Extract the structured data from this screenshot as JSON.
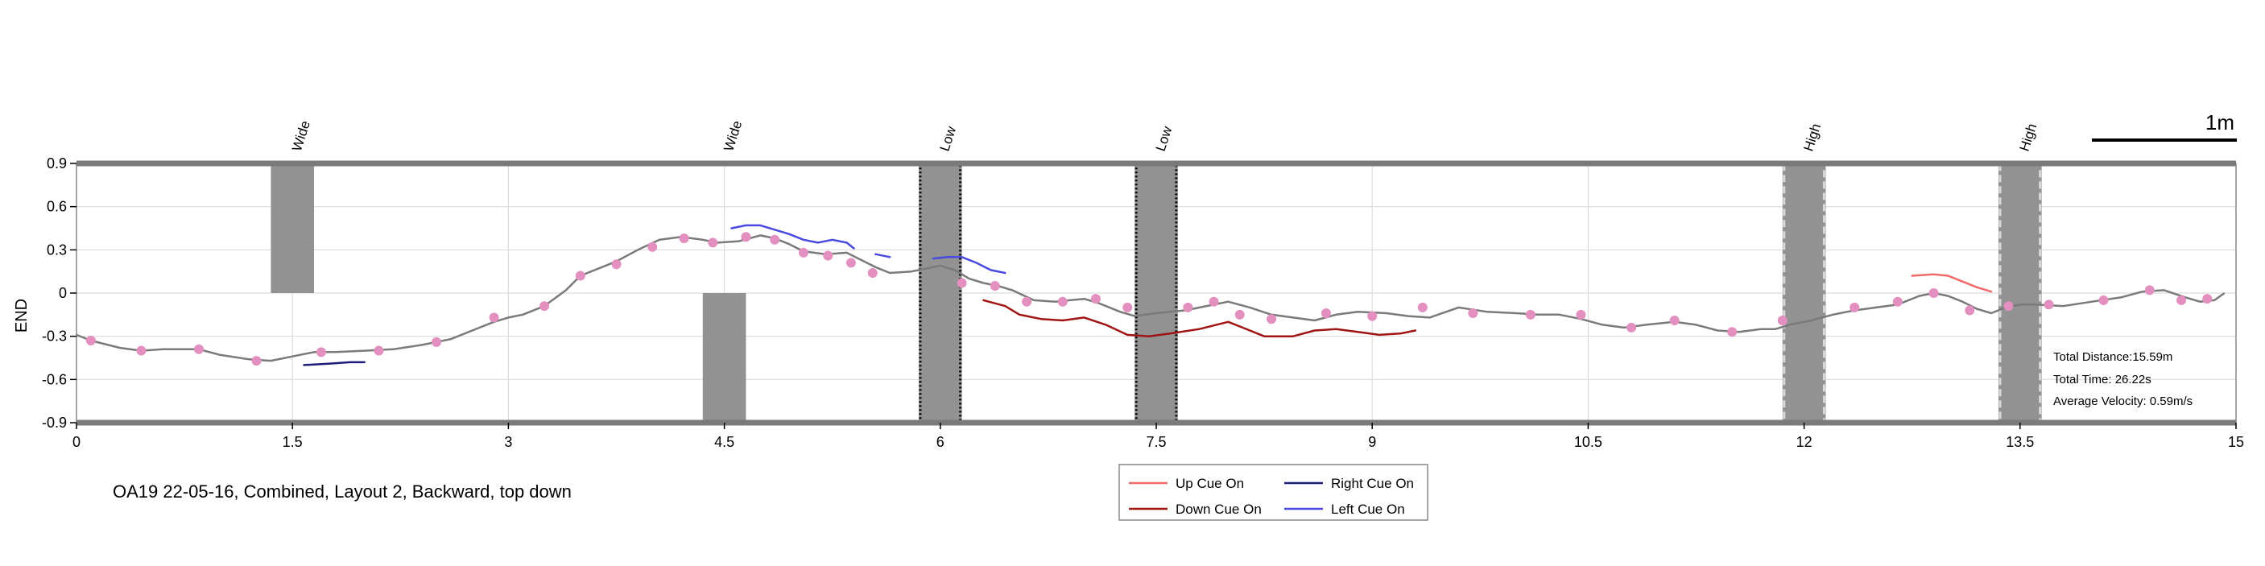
{
  "chart_data": {
    "type": "line",
    "ylabel": "END",
    "xlim": [
      0,
      15
    ],
    "ylim": [
      -0.9,
      0.9
    ],
    "xticks": [
      "0",
      "1.5",
      "3",
      "4.5",
      "6",
      "7.5",
      "9",
      "10.5",
      "12",
      "13.5",
      "15"
    ],
    "yticks": [
      "0.9",
      "0.6",
      "0.3",
      "0",
      "-0.3",
      "-0.6",
      "-0.9"
    ],
    "grid": true,
    "scale_bar_label": "1m",
    "obstacles": [
      {
        "label": "Wide",
        "x": [
          1.35,
          1.65
        ],
        "y": [
          0,
          0.9
        ],
        "style": "solid"
      },
      {
        "label": "Wide",
        "x": [
          4.35,
          4.65
        ],
        "y": [
          -0.9,
          0
        ],
        "style": "solid"
      },
      {
        "label": "Low",
        "x": [
          5.85,
          6.15
        ],
        "y": [
          -0.9,
          0.9
        ],
        "style": "dotted-black"
      },
      {
        "label": "Low",
        "x": [
          7.35,
          7.65
        ],
        "y": [
          -0.9,
          0.9
        ],
        "style": "dotted-black"
      },
      {
        "label": "High",
        "x": [
          11.85,
          12.15
        ],
        "y": [
          -0.9,
          0.9
        ],
        "style": "dashed-grey"
      },
      {
        "label": "High",
        "x": [
          13.35,
          13.65
        ],
        "y": [
          -0.9,
          0.9
        ],
        "style": "dashed-grey"
      }
    ],
    "path": {
      "x": [
        0,
        0.1,
        0.3,
        0.45,
        0.6,
        0.85,
        1.0,
        1.2,
        1.35,
        1.5,
        1.65,
        1.8,
        2.0,
        2.2,
        2.4,
        2.6,
        2.8,
        2.9,
        3.0,
        3.1,
        3.25,
        3.4,
        3.5,
        3.65,
        3.75,
        3.9,
        4.05,
        4.2,
        4.35,
        4.45,
        4.6,
        4.75,
        4.85,
        4.95,
        5.05,
        5.2,
        5.35,
        5.45,
        5.55,
        5.65,
        5.8,
        6.0,
        6.1,
        6.2,
        6.3,
        6.4,
        6.5,
        6.65,
        6.8,
        6.9,
        7.0,
        7.1,
        7.25,
        7.35,
        7.5,
        7.7,
        7.85,
        8.0,
        8.15,
        8.3,
        8.45,
        8.6,
        8.75,
        8.9,
        9.1,
        9.25,
        9.4,
        9.6,
        9.8,
        10.0,
        10.15,
        10.3,
        10.45,
        10.6,
        10.75,
        10.9,
        11.1,
        11.25,
        11.4,
        11.55,
        11.7,
        11.8,
        11.9,
        12.05,
        12.2,
        12.35,
        12.5,
        12.65,
        12.8,
        12.9,
        13.0,
        13.1,
        13.2,
        13.3,
        13.4,
        13.5,
        13.6,
        13.8,
        14.0,
        14.2,
        14.35,
        14.5,
        14.65,
        14.75,
        14.85,
        14.92
      ],
      "y": [
        -0.29,
        -0.33,
        -0.38,
        -0.4,
        -0.39,
        -0.39,
        -0.43,
        -0.46,
        -0.47,
        -0.44,
        -0.41,
        -0.41,
        -0.4,
        -0.39,
        -0.36,
        -0.32,
        -0.24,
        -0.2,
        -0.17,
        -0.15,
        -0.09,
        0.02,
        0.12,
        0.18,
        0.22,
        0.3,
        0.37,
        0.39,
        0.37,
        0.35,
        0.36,
        0.4,
        0.38,
        0.34,
        0.29,
        0.27,
        0.28,
        0.23,
        0.18,
        0.14,
        0.15,
        0.19,
        0.16,
        0.1,
        0.07,
        0.05,
        0.02,
        -0.05,
        -0.06,
        -0.05,
        -0.04,
        -0.07,
        -0.13,
        -0.16,
        -0.14,
        -0.12,
        -0.09,
        -0.06,
        -0.1,
        -0.15,
        -0.17,
        -0.19,
        -0.15,
        -0.13,
        -0.14,
        -0.16,
        -0.17,
        -0.1,
        -0.13,
        -0.14,
        -0.15,
        -0.15,
        -0.18,
        -0.22,
        -0.24,
        -0.22,
        -0.2,
        -0.22,
        -0.26,
        -0.27,
        -0.25,
        -0.25,
        -0.22,
        -0.19,
        -0.15,
        -0.12,
        -0.1,
        -0.08,
        -0.02,
        0.0,
        -0.02,
        -0.06,
        -0.11,
        -0.14,
        -0.1,
        -0.08,
        -0.08,
        -0.09,
        -0.06,
        -0.03,
        0.01,
        0.02,
        -0.03,
        -0.06,
        -0.05,
        0.0
      ]
    },
    "markers": {
      "x": [
        0.1,
        0.45,
        0.85,
        1.25,
        1.7,
        2.1,
        2.5,
        2.9,
        3.25,
        3.5,
        3.75,
        4.0,
        4.22,
        4.42,
        4.65,
        4.85,
        5.05,
        5.22,
        5.38,
        5.53,
        6.15,
        6.38,
        6.6,
        6.85,
        7.08,
        7.3,
        7.72,
        7.9,
        8.08,
        8.3,
        8.68,
        9.0,
        9.35,
        9.7,
        10.1,
        10.45,
        10.8,
        11.1,
        11.5,
        11.85,
        12.35,
        12.65,
        12.9,
        13.15,
        13.42,
        13.7,
        14.08,
        14.4,
        14.62,
        14.8
      ],
      "y": [
        -0.33,
        -0.4,
        -0.39,
        -0.47,
        -0.41,
        -0.4,
        -0.34,
        -0.17,
        -0.09,
        0.12,
        0.2,
        0.32,
        0.38,
        0.35,
        0.39,
        0.37,
        0.28,
        0.26,
        0.21,
        0.14,
        0.07,
        0.05,
        -0.06,
        -0.06,
        -0.04,
        -0.1,
        -0.1,
        -0.06,
        -0.15,
        -0.18,
        -0.14,
        -0.16,
        -0.1,
        -0.14,
        -0.15,
        -0.15,
        -0.24,
        -0.19,
        -0.27,
        -0.19,
        -0.1,
        -0.06,
        0.0,
        -0.12,
        -0.09,
        -0.08,
        -0.05,
        0.02,
        -0.05,
        -0.04
      ],
      "color": "#e38fbf"
    },
    "series": [
      {
        "name": "Up Cue On",
        "color": "#f06a6a",
        "segments": [
          [
            [
              12.75,
              0.12
            ],
            [
              12.9,
              0.13
            ],
            [
              13.0,
              0.12
            ],
            [
              13.1,
              0.08
            ],
            [
              13.2,
              0.04
            ],
            [
              13.3,
              0.01
            ]
          ]
        ]
      },
      {
        "name": "Down Cue On",
        "color": "#a01414",
        "segments": [
          [
            [
              6.3,
              -0.05
            ],
            [
              6.45,
              -0.09
            ],
            [
              6.55,
              -0.15
            ],
            [
              6.7,
              -0.18
            ],
            [
              6.85,
              -0.19
            ],
            [
              7.0,
              -0.17
            ],
            [
              7.15,
              -0.22
            ],
            [
              7.3,
              -0.29
            ],
            [
              7.45,
              -0.3
            ],
            [
              7.6,
              -0.28
            ],
            [
              7.8,
              -0.25
            ],
            [
              8.0,
              -0.2
            ],
            [
              8.1,
              -0.24
            ],
            [
              8.25,
              -0.3
            ],
            [
              8.45,
              -0.3
            ],
            [
              8.6,
              -0.26
            ],
            [
              8.75,
              -0.25
            ],
            [
              8.9,
              -0.27
            ],
            [
              9.05,
              -0.29
            ],
            [
              9.2,
              -0.28
            ],
            [
              9.3,
              -0.26
            ]
          ]
        ]
      },
      {
        "name": "Right Cue On",
        "color": "#1c1c7a",
        "segments": [
          [
            [
              1.58,
              -0.5
            ],
            [
              1.75,
              -0.49
            ],
            [
              1.9,
              -0.48
            ],
            [
              2.0,
              -0.48
            ]
          ]
        ]
      },
      {
        "name": "Left Cue On",
        "color": "#4a4ae0",
        "segments": [
          [
            [
              4.55,
              0.45
            ],
            [
              4.65,
              0.47
            ],
            [
              4.75,
              0.47
            ],
            [
              4.85,
              0.44
            ],
            [
              4.95,
              0.41
            ],
            [
              5.05,
              0.37
            ],
            [
              5.15,
              0.35
            ],
            [
              5.25,
              0.37
            ],
            [
              5.35,
              0.35
            ],
            [
              5.4,
              0.31
            ]
          ],
          [
            [
              5.55,
              0.27
            ],
            [
              5.65,
              0.25
            ]
          ],
          [
            [
              5.95,
              0.24
            ],
            [
              6.05,
              0.25
            ],
            [
              6.15,
              0.25
            ],
            [
              6.25,
              0.21
            ],
            [
              6.35,
              0.16
            ],
            [
              6.45,
              0.14
            ]
          ]
        ]
      }
    ],
    "legend": {
      "placement": "bottom-center",
      "entries": [
        {
          "label": "Up Cue On",
          "color": "#f06a6a"
        },
        {
          "label": "Right Cue On",
          "color": "#1c1c7a"
        },
        {
          "label": "Down Cue On",
          "color": "#a01414"
        },
        {
          "label": "Left Cue On",
          "color": "#4a4ae0"
        }
      ]
    },
    "stats": {
      "total_distance": "Total Distance:15.59m",
      "total_time": "Total Time: 26.22s",
      "average_velocity": "Average Velocity: 0.59m/s"
    }
  },
  "caption": "OA19 22-05-16, Combined, Layout 2, Backward, top down"
}
